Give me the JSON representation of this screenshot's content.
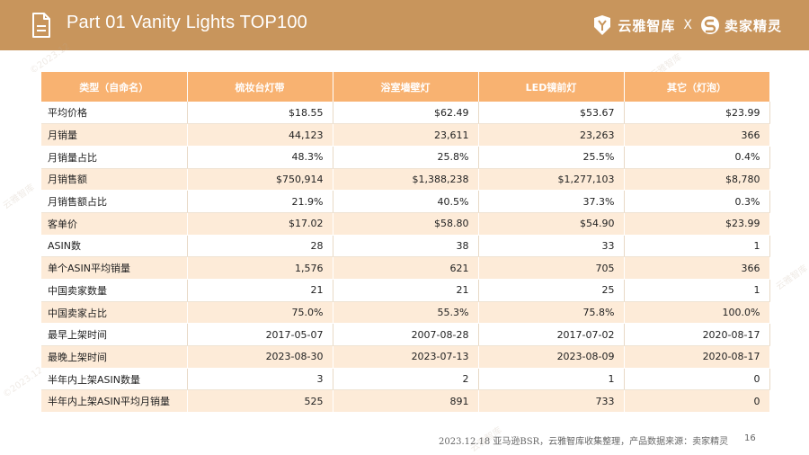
{
  "header": {
    "title": "Part 01  Vanity Lights    TOP100",
    "brand_a": "云雅智库",
    "brand_sep": "X",
    "brand_b": "卖家精灵"
  },
  "table": {
    "columns": [
      "类型（自命名）",
      "梳妆台灯带",
      "浴室墙壁灯",
      "LED镜前灯",
      "其它（灯泡）"
    ],
    "rows": [
      {
        "label": "平均价格",
        "values": [
          "$18.55",
          "$62.49",
          "$53.67",
          "$23.99"
        ]
      },
      {
        "label": "月销量",
        "values": [
          "44,123",
          "23,611",
          "23,263",
          "366"
        ]
      },
      {
        "label": "月销量占比",
        "values": [
          "48.3%",
          "25.8%",
          "25.5%",
          "0.4%"
        ]
      },
      {
        "label": "月销售额",
        "values": [
          "$750,914",
          "$1,388,238",
          "$1,277,103",
          "$8,780"
        ]
      },
      {
        "label": "月销售额占比",
        "values": [
          "21.9%",
          "40.5%",
          "37.3%",
          "0.3%"
        ]
      },
      {
        "label": "客单价",
        "values": [
          "$17.02",
          "$58.80",
          "$54.90",
          "$23.99"
        ]
      },
      {
        "label": "ASIN数",
        "values": [
          "28",
          "38",
          "33",
          "1"
        ]
      },
      {
        "label": "单个ASIN平均销量",
        "values": [
          "1,576",
          "621",
          "705",
          "366"
        ]
      },
      {
        "label": "中国卖家数量",
        "values": [
          "21",
          "21",
          "25",
          "1"
        ]
      },
      {
        "label": "中国卖家占比",
        "values": [
          "75.0%",
          "55.3%",
          "75.8%",
          "100.0%"
        ]
      },
      {
        "label": "最早上架时间",
        "values": [
          "2017-05-07",
          "2007-08-28",
          "2017-07-02",
          "2020-08-17"
        ]
      },
      {
        "label": "最晚上架时间",
        "values": [
          "2023-08-30",
          "2023-07-13",
          "2023-08-09",
          "2020-08-17"
        ]
      },
      {
        "label": "半年内上架ASIN数量",
        "values": [
          "3",
          "2",
          "1",
          "0"
        ]
      },
      {
        "label": "半年内上架ASIN平均月销量",
        "values": [
          "525",
          "891",
          "733",
          "0"
        ]
      }
    ]
  },
  "footer": {
    "note": "2023.12.18 亚马逊BSR，云雅智库收集整理，产品数据来源：卖家精灵",
    "page": "16"
  },
  "colors": {
    "header_bg": "#c8955c",
    "table_head_bg": "#f8b271",
    "row_alt_bg": "#fdebd8"
  }
}
